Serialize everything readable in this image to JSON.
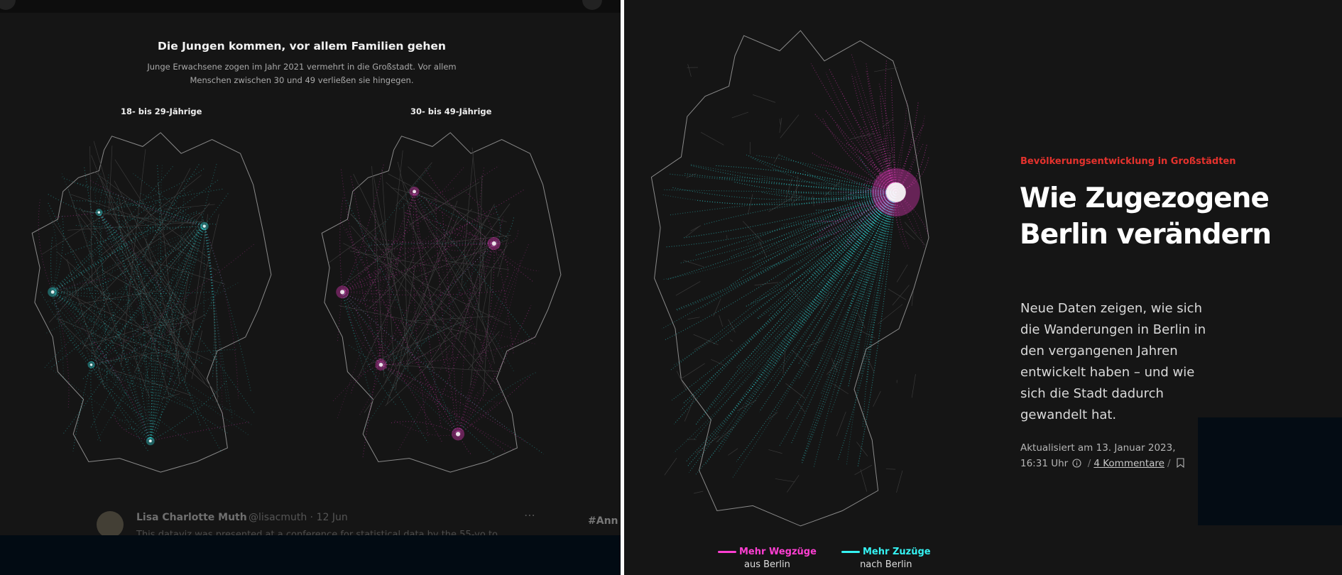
{
  "left": {
    "title": "Die Jungen kommen, vor allem Familien gehen",
    "subtitle": "Junge Erwachsene zogen im Jahr 2021 vermehrt in die Großstadt. Vor allem Menschen zwischen 30 und 49 verließen sie hingegen.",
    "map_labels": [
      "18- bis 29-Jährige",
      "30- bis 49-Jährige"
    ],
    "tweet": {
      "author": "Lisa Charlotte Muth",
      "handle": "@lisacmuth · 12 Jun",
      "text": "This dataviz was presented at a conference for statistical data by the 55-yo to..."
    },
    "hashtag": "#Ann"
  },
  "right": {
    "kicker": "Bevölkerungsentwicklung in Großstädten",
    "headline": "Wie Zugezogene Berlin verändern",
    "lede": "Neue Daten zeigen, wie sich die Wanderungen in Berlin in den vergangenen Jahren entwickelt haben – und wie sich die Stadt dadurch gewandelt hat.",
    "meta_date": "Aktualisiert am 13. Januar 2023, 16:31 Uhr",
    "comments": "4 Kommentare",
    "legend": [
      {
        "label": "Mehr Wegzüge",
        "sub": "aus Berlin",
        "color": "#ff3fd2"
      },
      {
        "label": "Mehr Zuzüge",
        "sub": "nach Berlin",
        "color": "#35f2f2"
      }
    ]
  },
  "colors": {
    "magenta": "#ff3fd2",
    "cyan": "#35f2f2",
    "accent_red": "#e5322d",
    "background": "#151515"
  },
  "icons": [
    "info-icon",
    "bookmark-icon"
  ]
}
